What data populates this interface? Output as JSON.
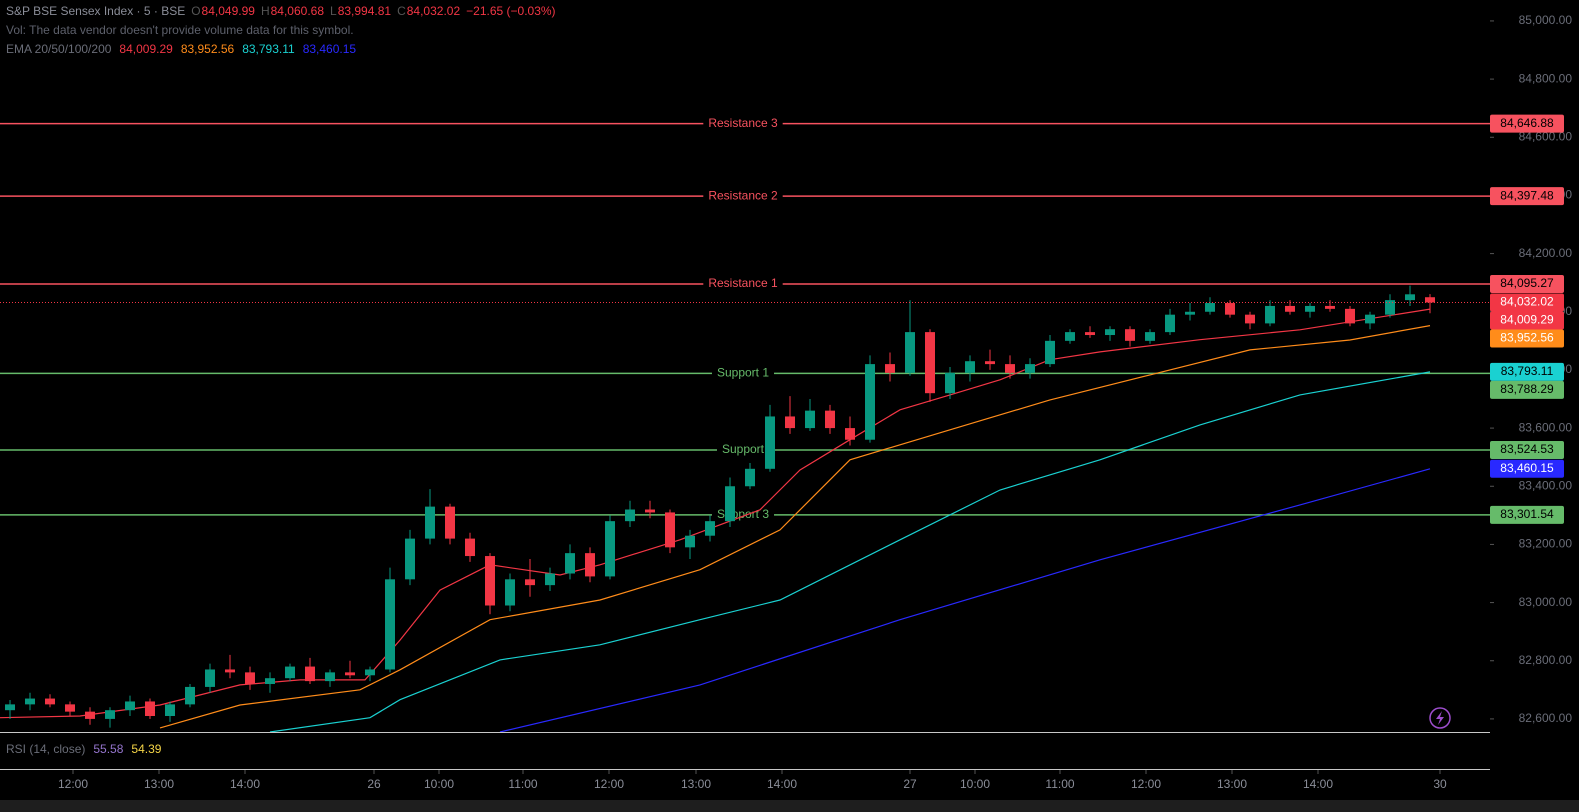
{
  "chart_data": {
    "type": "candlestick",
    "header": {
      "title": "S&P BSE Sensex Index · 5 · BSE",
      "ohlc": [
        {
          "key": "O",
          "label": "84,049.99"
        },
        {
          "key": "H",
          "label": "84,060.68"
        },
        {
          "key": "L",
          "label": "83,994.81"
        },
        {
          "key": "C",
          "label": "84,032.02"
        }
      ],
      "change": "−21.65 (−0.03%)",
      "volume_note": "Vol: The data vendor doesn't provide volume data for this symbol.",
      "ema_title": "EMA 20/50/100/200",
      "last_price_label": "84,032.02"
    },
    "up_color": "#089981",
    "down_color": "#f23645",
    "candles": [
      [
        82630,
        82665,
        82600,
        82650
      ],
      [
        82650,
        82690,
        82630,
        82670
      ],
      [
        82670,
        82685,
        82640,
        82650
      ],
      [
        82650,
        82660,
        82610,
        82625
      ],
      [
        82625,
        82640,
        82580,
        82600
      ],
      [
        82600,
        82640,
        82570,
        82630
      ],
      [
        82630,
        82680,
        82610,
        82660
      ],
      [
        82660,
        82670,
        82600,
        82610
      ],
      [
        82610,
        82660,
        82590,
        82650
      ],
      [
        82650,
        82720,
        82640,
        82710
      ],
      [
        82710,
        82790,
        82690,
        82770
      ],
      [
        82770,
        82820,
        82740,
        82760
      ],
      [
        82760,
        82780,
        82700,
        82720
      ],
      [
        82720,
        82760,
        82690,
        82740
      ],
      [
        82740,
        82790,
        82730,
        82780
      ],
      [
        82780,
        82810,
        82720,
        82730
      ],
      [
        82730,
        82770,
        82710,
        82760
      ],
      [
        82760,
        82800,
        82740,
        82750
      ],
      [
        82750,
        82780,
        82730,
        82770
      ],
      [
        82770,
        83120,
        82760,
        83080
      ],
      [
        83080,
        83250,
        83060,
        83220
      ],
      [
        83220,
        83390,
        83200,
        83330
      ],
      [
        83330,
        83340,
        83200,
        83220
      ],
      [
        83220,
        83240,
        83140,
        83160
      ],
      [
        83160,
        83170,
        82960,
        82990
      ],
      [
        82990,
        83100,
        82970,
        83080
      ],
      [
        83080,
        83150,
        83020,
        83060
      ],
      [
        83060,
        83120,
        83040,
        83100
      ],
      [
        83100,
        83200,
        83080,
        83170
      ],
      [
        83170,
        83190,
        83070,
        83090
      ],
      [
        83090,
        83300,
        83080,
        83280
      ],
      [
        83280,
        83350,
        83260,
        83320
      ],
      [
        83320,
        83350,
        83290,
        83310
      ],
      [
        83310,
        83320,
        83170,
        83190
      ],
      [
        83190,
        83250,
        83150,
        83230
      ],
      [
        83230,
        83300,
        83210,
        83280
      ],
      [
        83280,
        83430,
        83260,
        83400
      ],
      [
        83400,
        83480,
        83390,
        83460
      ],
      [
        83460,
        83680,
        83450,
        83640
      ],
      [
        83640,
        83710,
        83580,
        83600
      ],
      [
        83600,
        83700,
        83590,
        83660
      ],
      [
        83660,
        83680,
        83580,
        83600
      ],
      [
        83600,
        83640,
        83540,
        83560
      ],
      [
        83560,
        83850,
        83550,
        83820
      ],
      [
        83820,
        83860,
        83760,
        83790
      ],
      [
        83790,
        84040,
        83780,
        83930
      ],
      [
        83930,
        83940,
        83690,
        83720
      ],
      [
        83720,
        83810,
        83700,
        83790
      ],
      [
        83790,
        83850,
        83760,
        83830
      ],
      [
        83830,
        83870,
        83800,
        83820
      ],
      [
        83820,
        83850,
        83770,
        83790
      ],
      [
        83790,
        83840,
        83770,
        83820
      ],
      [
        83820,
        83920,
        83810,
        83900
      ],
      [
        83900,
        83940,
        83890,
        83930
      ],
      [
        83930,
        83950,
        83910,
        83920
      ],
      [
        83920,
        83950,
        83900,
        83940
      ],
      [
        83940,
        83950,
        83880,
        83900
      ],
      [
        83900,
        83940,
        83890,
        83930
      ],
      [
        83930,
        84010,
        83920,
        83990
      ],
      [
        83990,
        84030,
        83970,
        84000
      ],
      [
        84000,
        84050,
        83990,
        84030
      ],
      [
        84030,
        84040,
        83980,
        83990
      ],
      [
        83990,
        84000,
        83940,
        83960
      ],
      [
        83960,
        84040,
        83950,
        84020
      ],
      [
        84020,
        84040,
        83990,
        84000
      ],
      [
        84000,
        84030,
        83980,
        84020
      ],
      [
        84020,
        84040,
        84000,
        84010
      ],
      [
        84010,
        84020,
        83950,
        83960
      ],
      [
        83960,
        84000,
        83940,
        83990
      ],
      [
        83990,
        84060,
        83980,
        84040
      ],
      [
        84040,
        84090,
        84020,
        84060
      ],
      [
        84049.99,
        84060.68,
        83994.81,
        84032.02
      ]
    ],
    "series": [
      {
        "name": "EMA 20",
        "color": "#f23645",
        "value_label": "84,009.29",
        "x": [
          0,
          4,
          8,
          12,
          15,
          18.25,
          20,
          22,
          24.5,
          28,
          30,
          34,
          38,
          40,
          42.5,
          45,
          47.5,
          50,
          52.5,
          55,
          60,
          65,
          71.5
        ],
        "values": [
          82604,
          82610,
          82648,
          82717,
          82734,
          82734,
          82871,
          83043,
          83130,
          83095,
          83130,
          83216,
          83319,
          83456,
          83560,
          83663,
          83714,
          83766,
          83835,
          83862,
          83904,
          83938,
          84009.29
        ]
      },
      {
        "name": "EMA 50",
        "color": "#ff8c1a",
        "value_label": "83,952.56",
        "x": [
          8,
          12,
          18,
          20,
          24.5,
          30,
          35,
          39,
          42.5,
          47.5,
          52.5,
          57.5,
          62.5,
          67.5,
          71.5
        ],
        "values": [
          82569,
          82648,
          82700,
          82769,
          82941,
          83009,
          83113,
          83250,
          83491,
          83594,
          83697,
          83783,
          83869,
          83903,
          83952.56
        ]
      },
      {
        "name": "EMA 100",
        "color": "#1ad1d1",
        "value_label": "83,793.11",
        "x": [
          13.5,
          18.5,
          20,
          25,
          30,
          35,
          39,
          45,
          50,
          55,
          60,
          65,
          71.5
        ],
        "values": [
          82555,
          82604,
          82666,
          82803,
          82855,
          82941,
          83009,
          83216,
          83387,
          83491,
          83611,
          83714,
          83793.11
        ]
      },
      {
        "name": "EMA 200",
        "color": "#2929ff",
        "value_label": "83,460.15",
        "x": [
          25,
          35,
          45,
          55,
          65,
          71.5
        ],
        "values": [
          82555,
          82717,
          82941,
          83147,
          83336,
          83460.15
        ]
      }
    ],
    "levels": [
      {
        "name": "Resistance 3",
        "value": 84646.88,
        "label": "84,646.88",
        "color": "#f7525f"
      },
      {
        "name": "Resistance 2",
        "value": 84397.48,
        "label": "84,397.48",
        "color": "#f7525f"
      },
      {
        "name": "Resistance 1",
        "value": 84095.27,
        "label": "84,095.27",
        "color": "#f7525f"
      },
      {
        "name": "Support 1",
        "value": 83788.29,
        "label": "83,788.29",
        "color": "#66bb6a"
      },
      {
        "name": "Support",
        "value": 83524.53,
        "label": "83,524.53",
        "color": "#66bb6a"
      },
      {
        "name": "Support 3",
        "value": 83301.54,
        "label": "83,301.54",
        "color": "#66bb6a"
      }
    ],
    "xlim": [
      0,
      72
    ],
    "xticks": [
      {
        "value": 3.65,
        "label": "12:00"
      },
      {
        "value": 7.95,
        "label": "13:00"
      },
      {
        "value": 12.25,
        "label": "14:00"
      },
      {
        "value": 18.7,
        "label": "26"
      },
      {
        "value": 21.95,
        "label": "10:00"
      },
      {
        "value": 26.15,
        "label": "11:00"
      },
      {
        "value": 30.45,
        "label": "12:00"
      },
      {
        "value": 34.8,
        "label": "13:00"
      },
      {
        "value": 39.1,
        "label": "14:00"
      },
      {
        "value": 45.5,
        "label": "27"
      },
      {
        "value": 48.75,
        "label": "10:00"
      },
      {
        "value": 53,
        "label": "11:00"
      },
      {
        "value": 57.3,
        "label": "12:00"
      },
      {
        "value": 61.6,
        "label": "13:00"
      },
      {
        "value": 65.9,
        "label": "14:00"
      },
      {
        "value": 72,
        "label": "30"
      }
    ],
    "ylim": [
      82555,
      85072
    ],
    "yticks": [
      {
        "value": 82600,
        "label": "82,600.00"
      },
      {
        "value": 82800,
        "label": "82,800.00"
      },
      {
        "value": 83000,
        "label": "83,000.00"
      },
      {
        "value": 83200,
        "label": "83,200.00"
      },
      {
        "value": 83400,
        "label": "83,400.00"
      },
      {
        "value": 83600,
        "label": "83,600.00"
      },
      {
        "value": 83800,
        "label": "83,800.00"
      },
      {
        "value": 84000,
        "label": "84,000.00"
      },
      {
        "value": 84200,
        "label": "84,200.00"
      },
      {
        "value": 84400,
        "label": "84,400.00"
      },
      {
        "value": 84600,
        "label": "84,600.00"
      },
      {
        "value": 84800,
        "label": "84,800.00"
      },
      {
        "value": 85000,
        "label": "85,000.00"
      }
    ],
    "rsi": {
      "title": "RSI (14, close)",
      "values": [
        {
          "label": "55.58",
          "color": "#9575cd"
        },
        {
          "label": "54.39",
          "color": "#f5d547"
        }
      ]
    }
  }
}
